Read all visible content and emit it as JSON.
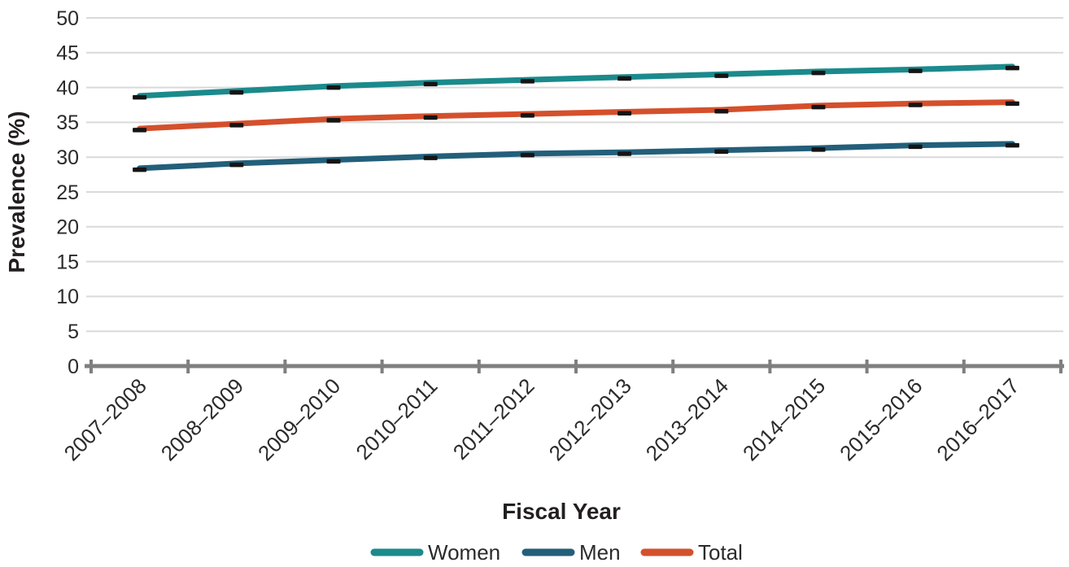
{
  "chart_data": {
    "type": "line",
    "title": "",
    "xlabel": "Fiscal Year",
    "ylabel": "Prevalence (%)",
    "ylim": [
      0,
      50
    ],
    "ytick_step": 5,
    "grid": true,
    "legend_position": "bottom",
    "x_axis_style": "category-bands-with-boundary-ticks",
    "categories": [
      "2007–2008",
      "2008–2009",
      "2009–2010",
      "2010–2011",
      "2011–2012",
      "2012–2013",
      "2013–2014",
      "2014–2015",
      "2015–2016",
      "2016–2017"
    ],
    "series": [
      {
        "name": "Women",
        "color": "#1b8a8c",
        "values": [
          38.8,
          39.5,
          40.2,
          40.7,
          41.1,
          41.5,
          41.9,
          42.3,
          42.6,
          43.0
        ]
      },
      {
        "name": "Men",
        "color": "#235f7a",
        "values": [
          28.4,
          29.1,
          29.6,
          30.1,
          30.5,
          30.7,
          31.0,
          31.3,
          31.7,
          31.9
        ]
      },
      {
        "name": "Total",
        "color": "#d4502c",
        "values": [
          34.1,
          34.8,
          35.5,
          35.9,
          36.2,
          36.5,
          36.8,
          37.4,
          37.7,
          37.9
        ]
      }
    ],
    "point_marker": {
      "shape": "horizontal-dash",
      "color": "#151515"
    },
    "colors": {
      "gridline": "#d9d9d9",
      "axis": "#7f7f7f",
      "tick_text": "#2b2b2b",
      "title_text": "#231f20",
      "background": "#ffffff"
    }
  }
}
